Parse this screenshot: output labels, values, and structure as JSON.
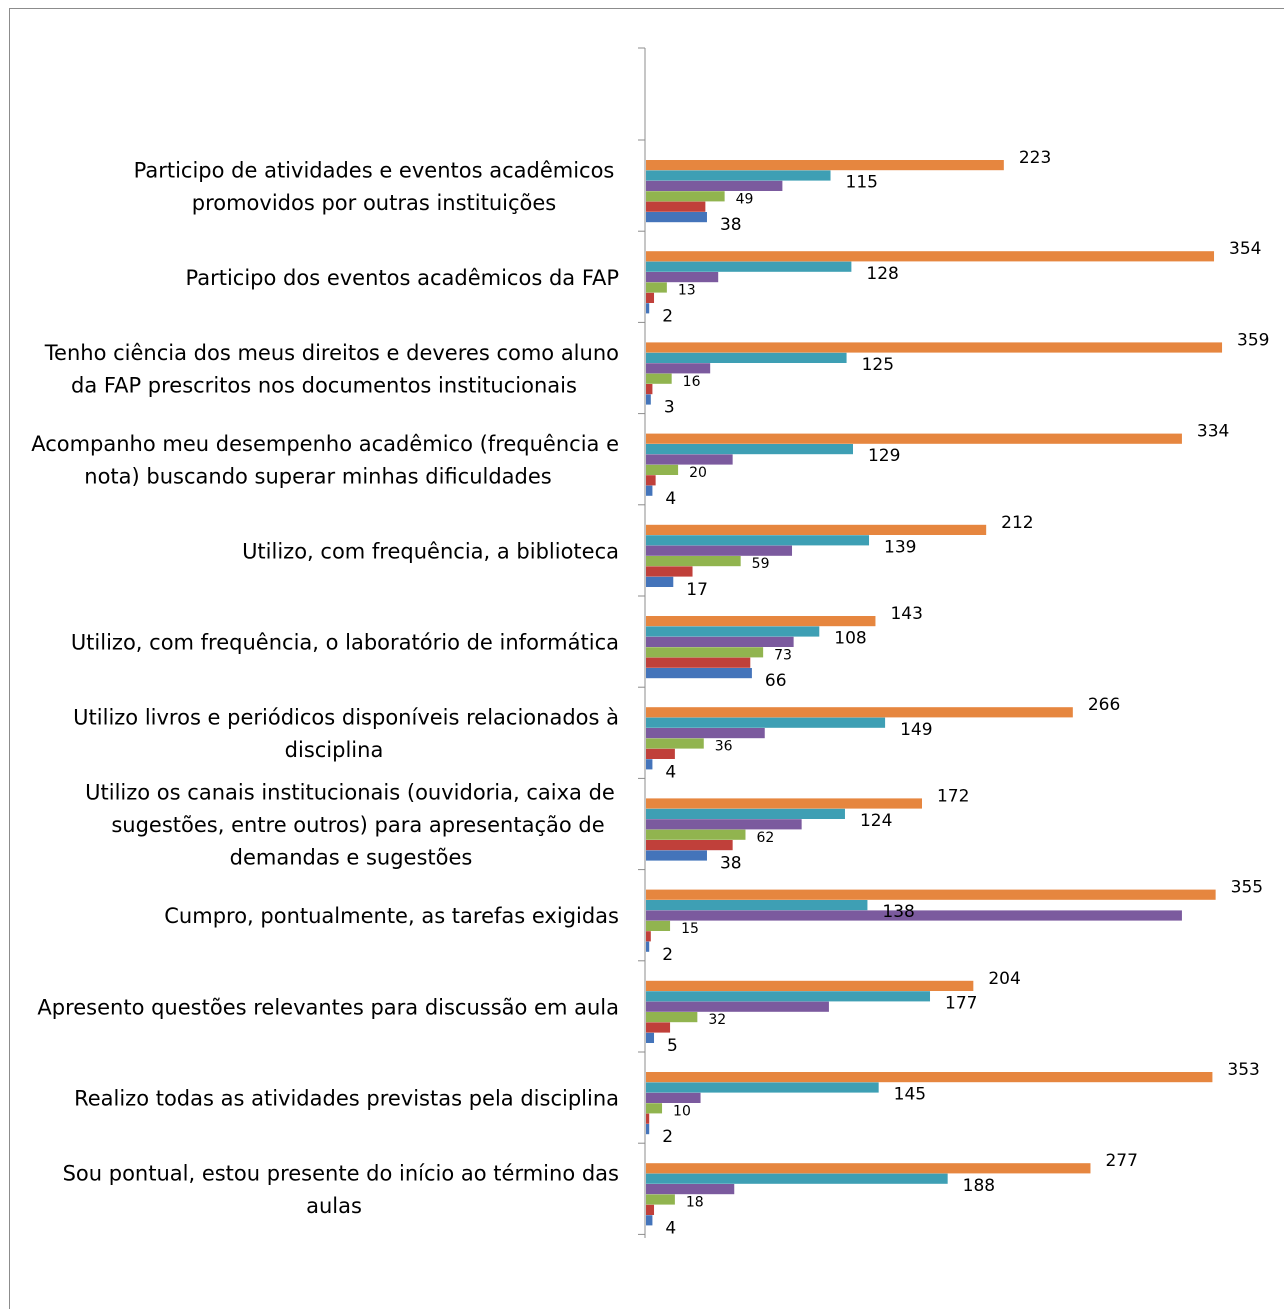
{
  "chart_data": {
    "type": "bar",
    "orientation": "horizontal",
    "title": "",
    "xlabel": "",
    "ylabel": "",
    "legend": "none",
    "grid": false,
    "xlim": [
      0,
      360
    ],
    "categories": [
      {
        "lines": [
          "Participo de atividades e eventos acadêmicos",
          "promovidos por outras instituições"
        ]
      },
      {
        "lines": [
          "Participo dos eventos acadêmicos da FAP"
        ]
      },
      {
        "lines": [
          "Tenho ciência dos meus direitos e deveres como aluno",
          "da FAP prescritos nos documentos institucionais"
        ]
      },
      {
        "lines": [
          "Acompanho meu desempenho acadêmico (frequência e",
          "nota) buscando superar minhas dificuldades"
        ]
      },
      {
        "lines": [
          "Utilizo, com frequência, a biblioteca"
        ]
      },
      {
        "lines": [
          "Utilizo, com frequência, o laboratório de informática"
        ]
      },
      {
        "lines": [
          "Utilizo livros e periódicos disponíveis relacionados à",
          "disciplina"
        ]
      },
      {
        "lines": [
          "Utilizo os canais institucionais (ouvidoria, caixa de",
          "sugestões, entre outros) para apresentação de",
          "demandas e sugestões"
        ]
      },
      {
        "lines": [
          "Cumpro, pontualmente, as tarefas exigidas"
        ]
      },
      {
        "lines": [
          "Apresento questões relevantes para discussão em aula"
        ]
      },
      {
        "lines": [
          "Realizo todas as atividades previstas pela disciplina"
        ]
      },
      {
        "lines": [
          "Sou pontual, estou presente do início ao término das",
          "aulas"
        ]
      }
    ],
    "series": [
      {
        "color": "#e6863f",
        "values": [
          223,
          354,
          359,
          334,
          212,
          143,
          266,
          172,
          355,
          204,
          353,
          277
        ],
        "labels": [
          "223",
          "354",
          "359",
          "334",
          "212",
          "143",
          "266",
          "172",
          "355",
          "204",
          "353",
          "277"
        ]
      },
      {
        "color": "#3e9fb4",
        "values": [
          115,
          128,
          125,
          129,
          139,
          108,
          149,
          124,
          138,
          177,
          145,
          188
        ],
        "labels": [
          "115",
          "128",
          "125",
          "129",
          "139",
          "108",
          "149",
          "124",
          "138",
          "177",
          "145",
          "188"
        ]
      },
      {
        "color": "#7b5a9e",
        "values": [
          85,
          45,
          40,
          54,
          91,
          92,
          74,
          97,
          334,
          114,
          34,
          55
        ],
        "labels": []
      },
      {
        "color": "#91b44f",
        "values": [
          49,
          13,
          16,
          20,
          59,
          73,
          36,
          62,
          15,
          32,
          10,
          18
        ],
        "labels": [
          "49",
          "13",
          "16",
          "20",
          "59",
          "73",
          "36",
          "62",
          "15",
          "32",
          "10",
          "18"
        ]
      },
      {
        "color": "#c0403a",
        "values": [
          37,
          5,
          4,
          6,
          29,
          65,
          18,
          54,
          3,
          15,
          2,
          5
        ],
        "labels": []
      },
      {
        "color": "#4474ba",
        "values": [
          38,
          2,
          3,
          4,
          17,
          66,
          4,
          38,
          2,
          5,
          2,
          4
        ],
        "labels": [
          "38",
          "2",
          "3",
          "4",
          "17",
          "66",
          "4",
          "38",
          "2",
          "5",
          "2",
          "4"
        ]
      }
    ]
  }
}
